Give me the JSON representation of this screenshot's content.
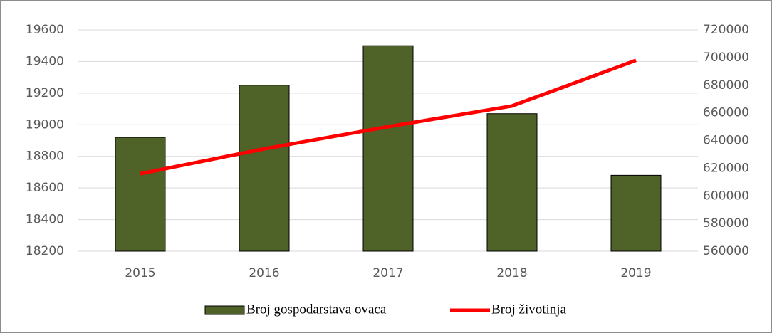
{
  "chart_data": {
    "type": "bar",
    "categories": [
      "2015",
      "2016",
      "2017",
      "2018",
      "2019"
    ],
    "series": [
      {
        "name": "Broj gospodarstava ovaca",
        "type": "bar",
        "color": "#4f6228",
        "values": [
          18920,
          19250,
          19500,
          19070,
          18680
        ]
      },
      {
        "name": "Broj životinja",
        "type": "line",
        "color": "#ff0000",
        "axis": "y2",
        "values": [
          616000,
          634000,
          650000,
          665000,
          698000
        ]
      }
    ],
    "ylim": [
      18200,
      19600
    ],
    "yticks": [
      18200,
      18400,
      18600,
      18800,
      19000,
      19200,
      19400,
      19600
    ],
    "y2lim": [
      560000,
      720000
    ],
    "y2ticks": [
      560000,
      580000,
      600000,
      620000,
      640000,
      660000,
      680000,
      700000,
      720000
    ],
    "grid": true,
    "legend": "bottom"
  }
}
